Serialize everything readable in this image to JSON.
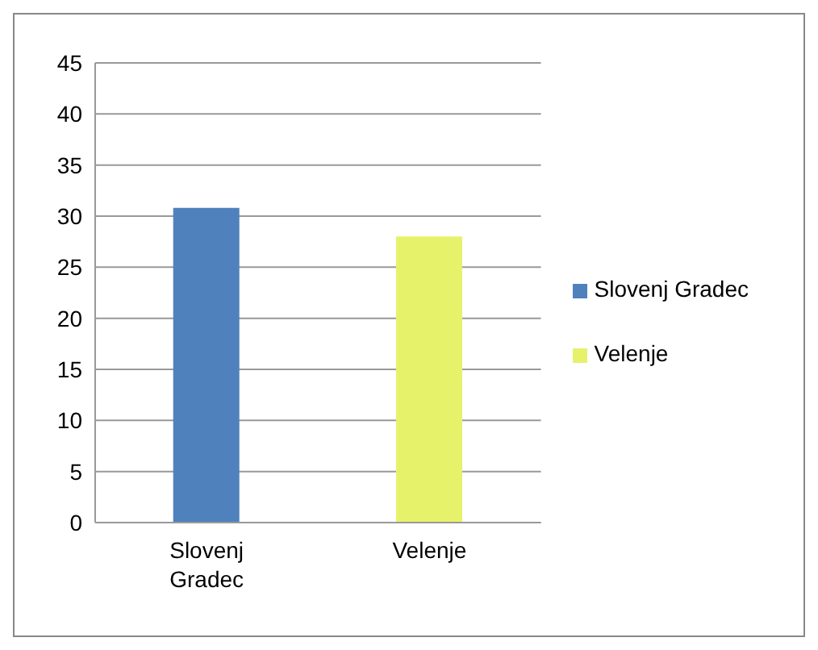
{
  "chart_data": {
    "type": "bar",
    "categories": [
      "Slovenj Gradec",
      "Velenje"
    ],
    "series": [
      {
        "name": "Slovenj Gradec",
        "color": "#4f81bd",
        "values": [
          30.8,
          null
        ]
      },
      {
        "name": "Velenje",
        "color": "#e6f26a",
        "values": [
          null,
          28
        ]
      }
    ],
    "ylim": [
      0,
      45
    ],
    "yticks": [
      0,
      5,
      10,
      15,
      20,
      25,
      30,
      35,
      40,
      45
    ],
    "grid": "y",
    "legend": "right"
  }
}
